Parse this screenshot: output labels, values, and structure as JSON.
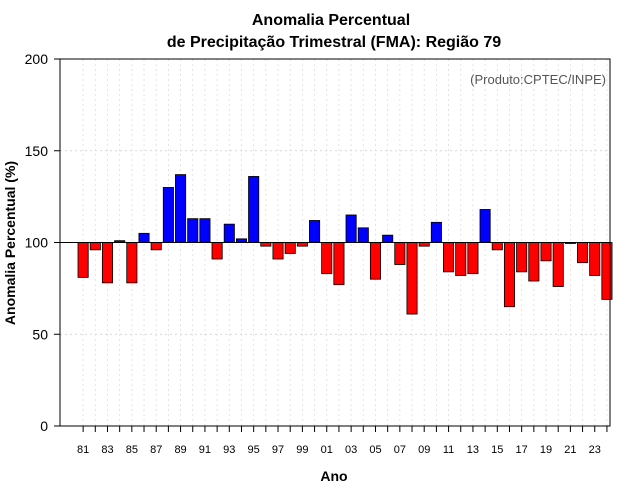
{
  "chart_data": {
    "type": "bar",
    "title_line1": "Anomalia Percentual",
    "title_line2": "de Precipitação Trimestral (FMA): Região 79",
    "xlabel": "Ano",
    "ylabel": "Anomalia Percentual (%)",
    "credit": "(Produto:CPTEC/INPE)",
    "ylim": [
      0,
      200
    ],
    "yticks": [
      0,
      50,
      100,
      150,
      200
    ],
    "baseline": 100,
    "grid": true,
    "colors": {
      "above": "#0000ff",
      "below": "#ff0000",
      "edge": "#000000"
    },
    "years": [
      1981,
      1982,
      1983,
      1984,
      1985,
      1986,
      1987,
      1988,
      1989,
      1990,
      1991,
      1992,
      1993,
      1994,
      1995,
      1996,
      1997,
      1998,
      1999,
      2000,
      2001,
      2002,
      2003,
      2004,
      2005,
      2006,
      2007,
      2008,
      2009,
      2010,
      2011,
      2012,
      2013,
      2014,
      2015,
      2016,
      2017,
      2018,
      2019,
      2020,
      2021,
      2022,
      2023,
      2024
    ],
    "values": [
      81,
      96,
      78,
      101,
      78,
      105,
      96,
      130,
      137,
      113,
      113,
      91,
      110,
      102,
      136,
      98,
      91,
      94,
      98,
      112,
      83,
      77,
      115,
      108,
      80,
      104,
      88,
      61,
      98,
      111,
      84,
      82,
      83,
      118,
      96,
      65,
      84,
      79,
      90,
      76,
      100,
      89,
      82,
      69
    ],
    "tick_labels": [
      "81",
      "83",
      "85",
      "87",
      "89",
      "91",
      "93",
      "95",
      "97",
      "99",
      "01",
      "03",
      "05",
      "07",
      "09",
      "11",
      "13",
      "15",
      "17",
      "19",
      "21",
      "23"
    ]
  }
}
